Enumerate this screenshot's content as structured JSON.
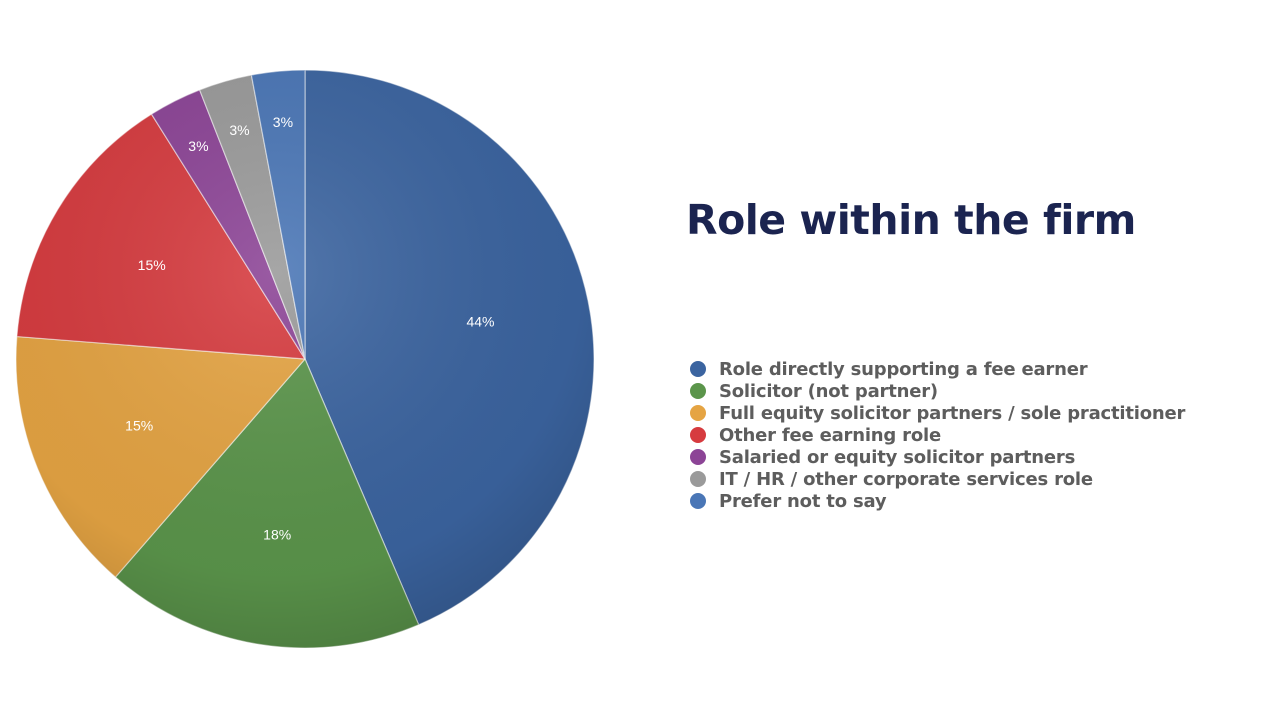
{
  "chart_data": {
    "type": "pie",
    "title": "Role within the firm",
    "legend_position": "right",
    "slices": [
      {
        "label": "Role directly supporting a fee earner",
        "value": 44,
        "value_label": "44%",
        "color": "#3b64a0"
      },
      {
        "label": "Solicitor (not partner)",
        "value": 18,
        "value_label": "18%",
        "color": "#5b954b"
      },
      {
        "label": "Full equity solicitor partners / sole practitioner",
        "value": 15,
        "value_label": "15%",
        "color": "#e5a443"
      },
      {
        "label": "Other fee earning role",
        "value": 15,
        "value_label": "15%",
        "color": "#d63b3f"
      },
      {
        "label": "Salaried or equity solicitor partners",
        "value": 3,
        "value_label": "3%",
        "color": "#8c4496"
      },
      {
        "label": "IT / HR / other corporate services role",
        "value": 3,
        "value_label": "3%",
        "color": "#9a9a9a"
      },
      {
        "label": "Prefer not to say",
        "value": 3,
        "value_label": "3%",
        "color": "#4a76b6"
      }
    ]
  }
}
